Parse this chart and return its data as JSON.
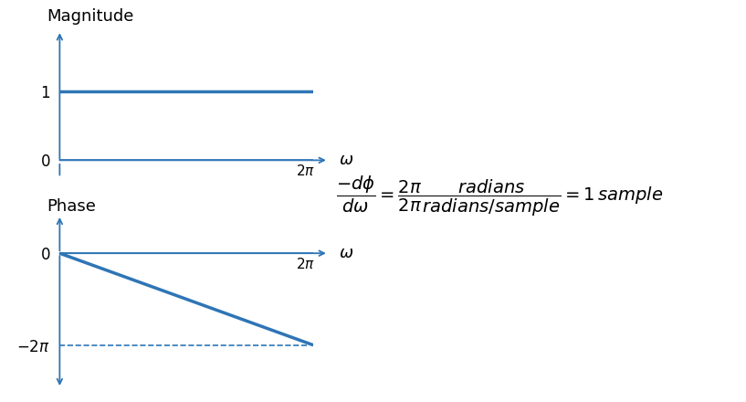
{
  "fig_width": 8.17,
  "fig_height": 4.4,
  "dpi": 100,
  "bg_color": "#ffffff",
  "line_color": "#2e75b6",
  "axis_color": "#2e75b6",
  "mag_title": "Magnitude",
  "phase_title": "Phase",
  "mag_ylim": [
    -0.3,
    1.8
  ],
  "mag_xlim": [
    0,
    1.0
  ],
  "phase_ylim": [
    -8.8,
    2.2
  ],
  "phase_xlim": [
    0,
    1.0
  ],
  "line_width": 2.5,
  "axis_lw": 1.3,
  "arrow_mutation_scale": 10
}
